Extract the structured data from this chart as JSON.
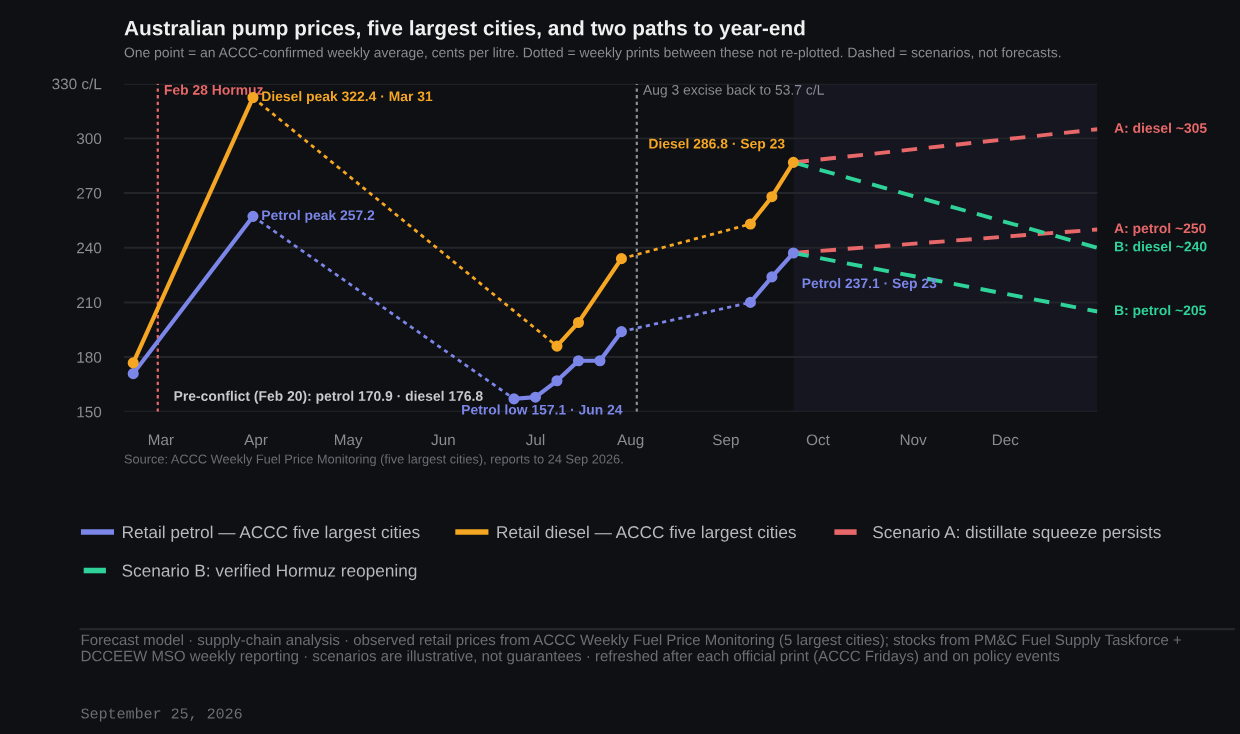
{
  "chart_data": {
    "type": "line",
    "title": "Australian pump prices, five largest cities, and two paths to year-end",
    "subtitle": "One point = an ACCC-confirmed weekly average, cents per litre. Dotted = weekly prints between these not re-plotted. Dashed = scenarios, not forecasts.",
    "series": [
      {
        "name": "Retail petrol — ACCC five largest cities",
        "color": "#7b86e8",
        "line_style": "solid",
        "marker": "circle",
        "x": [
          "2026-02-20",
          "2026-03-31"
        ],
        "values": [
          170.9,
          257.2
        ]
      },
      {
        "color": "#7b86e8",
        "line_style": "dotted",
        "x": [
          "2026-03-31",
          "2026-06-24"
        ],
        "values": [
          257.2,
          157.1
        ]
      },
      {
        "color": "#7b86e8",
        "line_style": "solid",
        "marker": "circle",
        "x": [
          "2026-06-24",
          "2026-07-01",
          "2026-07-08",
          "2026-07-15",
          "2026-07-22",
          "2026-07-29"
        ],
        "values": [
          157.1,
          158,
          167,
          178,
          178,
          194
        ]
      },
      {
        "color": "#7b86e8",
        "line_style": "dotted",
        "x": [
          "2026-07-29",
          "2026-09-09"
        ],
        "values": [
          194,
          210
        ]
      },
      {
        "color": "#7b86e8",
        "line_style": "solid",
        "marker": "circle",
        "x": [
          "2026-09-09",
          "2026-09-16",
          "2026-09-23"
        ],
        "values": [
          210,
          224,
          237.1
        ]
      },
      {
        "name": "Retail diesel — ACCC five largest cities",
        "color": "#f5a623",
        "line_style": "solid",
        "marker": "circle",
        "x": [
          "2026-02-20",
          "2026-03-31"
        ],
        "values": [
          176.8,
          322.4
        ]
      },
      {
        "color": "#f5a623",
        "line_style": "dotted",
        "x": [
          "2026-03-31",
          "2026-07-08"
        ],
        "values": [
          322.4,
          186
        ]
      },
      {
        "color": "#f5a623",
        "line_style": "solid",
        "marker": "circle",
        "x": [
          "2026-07-08",
          "2026-07-15",
          "2026-07-29"
        ],
        "values": [
          186,
          199,
          234
        ]
      },
      {
        "color": "#f5a623",
        "line_style": "dotted",
        "x": [
          "2026-07-29",
          "2026-09-09"
        ],
        "values": [
          234,
          253
        ]
      },
      {
        "color": "#f5a623",
        "line_style": "solid",
        "marker": "circle",
        "x": [
          "2026-09-09",
          "2026-09-16",
          "2026-09-23"
        ],
        "values": [
          253,
          268,
          286.8
        ]
      },
      {
        "name": "Scenario A: distillate squeeze persists",
        "color": "#e8686a",
        "line_style": "dashed",
        "marker": "none",
        "x": [
          "2026-09-23",
          "2026-12-31"
        ],
        "values": [
          286.8,
          305
        ]
      },
      {
        "color": "#e8686a",
        "line_style": "dashed",
        "marker": "none",
        "x": [
          "2026-09-23",
          "2026-12-31"
        ],
        "values": [
          237.1,
          250
        ]
      },
      {
        "name": "Scenario B: verified Hormuz reopening",
        "color": "#2fd39a",
        "line_style": "dashed",
        "marker": "none",
        "x": [
          "2026-09-23",
          "2026-12-31"
        ],
        "values": [
          286.8,
          240
        ]
      },
      {
        "color": "#2fd39a",
        "line_style": "dashed",
        "marker": "none",
        "x": [
          "2026-09-23",
          "2026-12-31"
        ],
        "values": [
          237.1,
          205
        ]
      }
    ],
    "xlim": [
      "2026-02-17",
      "2026-12-31"
    ],
    "xticks": [
      {
        "value": "2026-03-01",
        "label": "Mar"
      },
      {
        "value": "2026-04-01",
        "label": "Apr"
      },
      {
        "value": "2026-05-01",
        "label": "May"
      },
      {
        "value": "2026-06-01",
        "label": "Jun"
      },
      {
        "value": "2026-07-01",
        "label": "Jul"
      },
      {
        "value": "2026-08-01",
        "label": "Aug"
      },
      {
        "value": "2026-09-01",
        "label": "Sep"
      },
      {
        "value": "2026-10-01",
        "label": "Oct"
      },
      {
        "value": "2026-11-01",
        "label": "Nov"
      },
      {
        "value": "2026-12-01",
        "label": "Dec"
      }
    ],
    "ylim": [
      150,
      330
    ],
    "yticks": [
      150,
      180,
      210,
      240,
      270,
      300,
      {
        "value": 330,
        "label": "330 c/L"
      }
    ],
    "grid": "y",
    "legend": "bottom",
    "ref_lines": [
      {
        "axis": "x",
        "value": "2026-02-28",
        "label": "Feb 28 Hormuz",
        "color": "#e8686a",
        "line_style": "dotted"
      },
      {
        "axis": "x",
        "value": "2026-08-03",
        "label": "Aug 3 excise back to 53.7 c/L",
        "color": "#8a8d93",
        "line_style": "dotted"
      }
    ],
    "bands": [
      {
        "axis": "x",
        "from": "2026-09-23",
        "to": "2026-12-31",
        "color": "#15161f"
      }
    ],
    "annotations": [
      {
        "text": "Diesel peak 322.4 · Mar 31",
        "x": "2026-03-31",
        "y": 322.4
      },
      {
        "text": "Petrol peak 257.2",
        "x": "2026-03-31",
        "y": 257.2
      },
      {
        "text": "Petrol low 157.1 · Jun 24",
        "x": "2026-06-24",
        "y": 157.1
      },
      {
        "text": "Diesel 286.8 · Sep 23",
        "x": "2026-09-23",
        "y": 286.8
      },
      {
        "text": "Petrol 237.1 · Sep 23",
        "x": "2026-09-23",
        "y": 237.1
      },
      {
        "text": "A: diesel ~305",
        "x": "2026-12-31",
        "y": 305
      },
      {
        "text": "A: petrol ~250",
        "x": "2026-12-31",
        "y": 250
      },
      {
        "text": "B: diesel ~240",
        "x": "2026-12-31",
        "y": 240
      },
      {
        "text": "B: petrol ~205",
        "x": "2026-12-31",
        "y": 205
      },
      "Pre-conflict (Feb 20): petrol 170.9 · diesel 176.8",
      "Source: ACCC Weekly Fuel Price Monitoring (five largest cities), reports to 24 Sep 2026.",
      "Forecast model · supply-chain analysis · observed retail prices from ACCC Weekly Fuel Price Monitoring (5 largest cities); stocks from PM&C Fuel Supply Taskforce + DCCEEW MSO weekly reporting · scenarios are illustrative, not guarantees · refreshed after each official print (ACCC Fridays) and on policy events",
      "September 25, 2026"
    ]
  }
}
